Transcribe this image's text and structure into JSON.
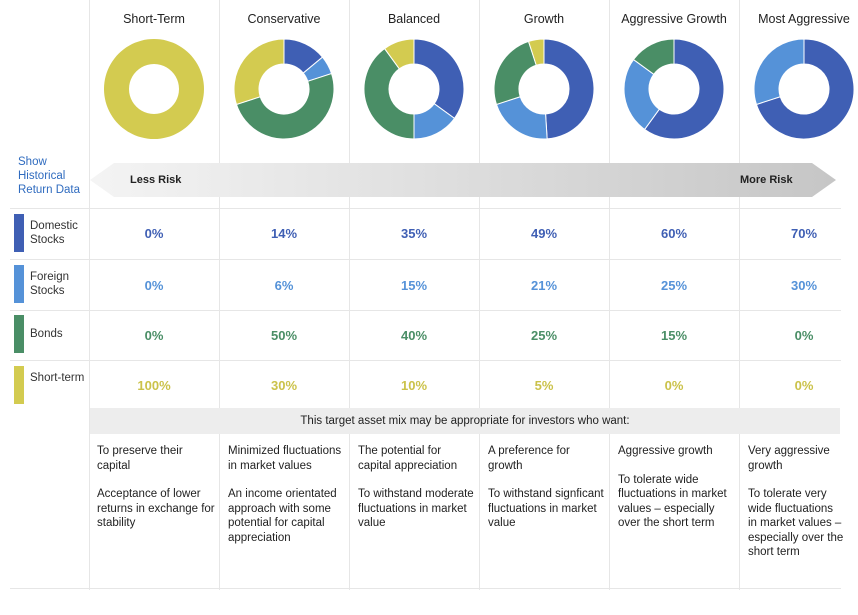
{
  "link": {
    "text": "Show Historical Return Data"
  },
  "risk": {
    "left": "Less Risk",
    "right": "More Risk"
  },
  "band_text": "This target asset mix may be appropriate for investors who want:",
  "colors": {
    "domestic": "#3f5fb4",
    "foreign": "#5592d8",
    "bonds": "#4a8e66",
    "short": "#d3cb50"
  },
  "rows": [
    {
      "label": "Domestic Stocks",
      "color": "#3f5fb4"
    },
    {
      "label": "Foreign Stocks",
      "color": "#5592d8"
    },
    {
      "label": "Bonds",
      "color": "#4a8e66"
    },
    {
      "label": "Short-term",
      "color": "#d3cb50"
    }
  ],
  "portfolios": [
    {
      "name": "Short-Term",
      "pcts": [
        "0%",
        "0%",
        "0%",
        "100%"
      ],
      "desc": [
        "To preserve their capital",
        "Acceptance of lower returns in exchange for stability"
      ]
    },
    {
      "name": "Conservative",
      "pcts": [
        "14%",
        "6%",
        "50%",
        "30%"
      ],
      "desc": [
        "Minimized fluctuations in market values",
        "An income orientated approach with some potential for capital appreciation"
      ]
    },
    {
      "name": "Balanced",
      "pcts": [
        "35%",
        "15%",
        "40%",
        "10%"
      ],
      "desc": [
        "The potential for capital appreciation",
        "To withstand moderate fluctuations in market value"
      ]
    },
    {
      "name": "Growth",
      "pcts": [
        "49%",
        "21%",
        "25%",
        "5%"
      ],
      "desc": [
        "A preference for growth",
        "To withstand signficant fluctuations in market value"
      ]
    },
    {
      "name": "Aggressive Growth",
      "pcts": [
        "60%",
        "25%",
        "15%",
        "0%"
      ],
      "desc": [
        "Aggressive growth",
        "To tolerate wide fluctuations in market values – especially over the short term"
      ]
    },
    {
      "name": "Most Aggressive",
      "pcts": [
        "70%",
        "30%",
        "0%",
        "0%"
      ],
      "desc": [
        "Very aggressive growth",
        "To tolerate very wide fluctuations in market values – especially over the short term"
      ]
    }
  ],
  "chart_data": {
    "type": "pie",
    "categories": [
      "Short-Term",
      "Conservative",
      "Balanced",
      "Growth",
      "Aggressive Growth",
      "Most Aggressive"
    ],
    "series": [
      {
        "name": "Domestic Stocks",
        "values": [
          0,
          14,
          35,
          49,
          60,
          70
        ]
      },
      {
        "name": "Foreign Stocks",
        "values": [
          0,
          6,
          15,
          21,
          25,
          30
        ]
      },
      {
        "name": "Bonds",
        "values": [
          0,
          50,
          40,
          25,
          15,
          0
        ]
      },
      {
        "name": "Short-term",
        "values": [
          100,
          30,
          10,
          5,
          0,
          0
        ]
      }
    ]
  }
}
